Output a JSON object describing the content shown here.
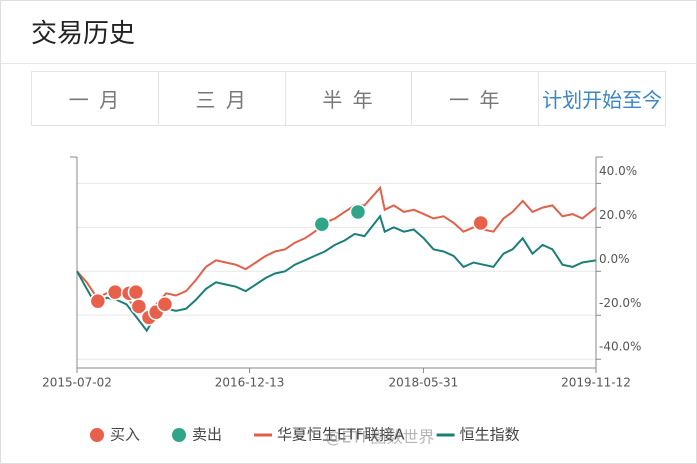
{
  "header": {
    "title": "交易历史"
  },
  "tabs": [
    {
      "label": "一 月"
    },
    {
      "label": "三 月"
    },
    {
      "label": "半 年"
    },
    {
      "label": "一 年"
    },
    {
      "label": "计划开始至今",
      "active": true
    }
  ],
  "watermark": "@ETF圈数世界",
  "chart_data": {
    "type": "line",
    "x": [
      "2015-07-02",
      "2015-08-01",
      "2015-09-01",
      "2015-10-01",
      "2015-11-01",
      "2015-12-01",
      "2016-01-01",
      "2016-02-01",
      "2016-03-01",
      "2016-04-01",
      "2016-05-01",
      "2016-06-01",
      "2016-07-01",
      "2016-08-01",
      "2016-09-01",
      "2016-10-01",
      "2016-11-01",
      "2016-12-01",
      "2017-01-01",
      "2017-02-01",
      "2017-03-01",
      "2017-04-01",
      "2017-05-01",
      "2017-06-01",
      "2017-07-01",
      "2017-08-01",
      "2017-09-01",
      "2017-10-01",
      "2017-11-01",
      "2017-12-01",
      "2018-01-18",
      "2018-02-01",
      "2018-03-01",
      "2018-04-01",
      "2018-05-01",
      "2018-06-01",
      "2018-07-01",
      "2018-08-01",
      "2018-09-01",
      "2018-10-01",
      "2018-11-01",
      "2018-12-01",
      "2019-01-01",
      "2019-02-01",
      "2019-03-01",
      "2019-04-01",
      "2019-05-01",
      "2019-06-01",
      "2019-07-01",
      "2019-08-01",
      "2019-09-01",
      "2019-10-01",
      "2019-11-12"
    ],
    "series": [
      {
        "name": "买入",
        "type": "scatter",
        "color": "#e8604a",
        "x": [
          "2015-09-04",
          "2015-10-27",
          "2015-12-09",
          "2015-12-30",
          "2016-01-08",
          "2016-02-08",
          "2016-03-01",
          "2016-03-28",
          "2018-11-23"
        ],
        "values": [
          -13.6,
          -9.5,
          -10,
          -9.5,
          -16,
          -21,
          -18.6,
          -15,
          22
        ]
      },
      {
        "name": "卖出",
        "type": "scatter",
        "color": "#2fa58a",
        "x": [
          "2017-07-23",
          "2017-11-11"
        ],
        "values": [
          21.4,
          27
        ]
      },
      {
        "name": "华夏恒生ETF联接A",
        "type": "line",
        "color": "#e0604a",
        "values": [
          0,
          -5,
          -12,
          -10,
          -9,
          -12,
          -17,
          -22,
          -15,
          -10,
          -11,
          -9,
          -4,
          2,
          5,
          4,
          3,
          1,
          4,
          7,
          9,
          10,
          13,
          15,
          18,
          22,
          24,
          27,
          30,
          30,
          38,
          28,
          30,
          27,
          28,
          26,
          24,
          25,
          22,
          18,
          20,
          19,
          18,
          24,
          27,
          32,
          27,
          29,
          30,
          25,
          26,
          24,
          29
        ]
      },
      {
        "name": "恒生指数",
        "type": "line",
        "color": "#1a7f78",
        "values": [
          0,
          -8,
          -16,
          -12,
          -13,
          -15,
          -21,
          -27,
          -20,
          -17,
          -18,
          -17,
          -13,
          -8,
          -5,
          -6,
          -7,
          -9,
          -6,
          -3,
          -1,
          0,
          3,
          5,
          7,
          9,
          12,
          14,
          17,
          16,
          25,
          18,
          20,
          18,
          19,
          15,
          10,
          9,
          7,
          2,
          4,
          3,
          2,
          8,
          10,
          15,
          8,
          12,
          10,
          3,
          2,
          4,
          5
        ]
      }
    ],
    "xlim": [
      "2015-07-02",
      "2019-11-12"
    ],
    "xticks": [
      "2015-07-02",
      "2016-12-13",
      "2018-05-31",
      "2019-11-12"
    ],
    "ylim": [
      -44,
      52
    ],
    "yticks": [
      {
        "value": -40,
        "label": "-40.0%"
      },
      {
        "value": -20,
        "label": "-20.0%"
      },
      {
        "value": 0,
        "label": "0.0%"
      },
      {
        "value": 20,
        "label": "20.0%"
      },
      {
        "value": 40,
        "label": "40.0%"
      }
    ],
    "grid": true
  }
}
